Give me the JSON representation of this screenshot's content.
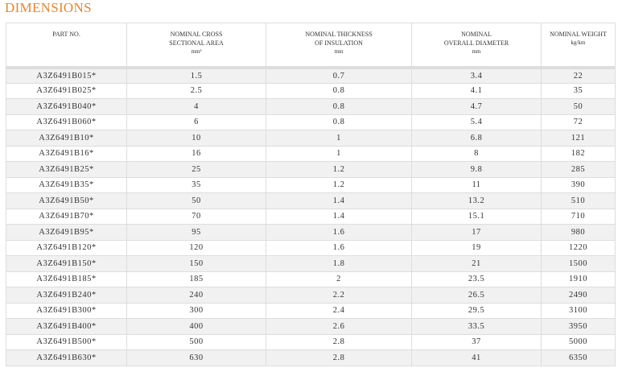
{
  "header": {
    "title": "DIMENSIONS"
  },
  "table": {
    "columns": [
      {
        "title": [
          "PART NO."
        ]
      },
      {
        "title": [
          "NOMINAL CROSS",
          "SECTIONAL AREA"
        ],
        "unit": "mm²"
      },
      {
        "title": [
          "NOMINAL THICKNESS",
          "OF INSULATION"
        ],
        "unit": "mm"
      },
      {
        "title": [
          "NOMINAL",
          "OVERALL DIAMETER"
        ],
        "unit": "mm"
      },
      {
        "title": [
          "NOMINAL WEIGHT"
        ],
        "unit": "kg/km"
      }
    ],
    "rows": [
      [
        "A3Z6491B015*",
        "1.5",
        "0.7",
        "3.4",
        "22"
      ],
      [
        "A3Z6491B025*",
        "2.5",
        "0.8",
        "4.1",
        "35"
      ],
      [
        "A3Z6491B040*",
        "4",
        "0.8",
        "4.7",
        "50"
      ],
      [
        "A3Z6491B060*",
        "6",
        "0.8",
        "5.4",
        "72"
      ],
      [
        "A3Z6491B10*",
        "10",
        "1",
        "6.8",
        "121"
      ],
      [
        "A3Z6491B16*",
        "16",
        "1",
        "8",
        "182"
      ],
      [
        "A3Z6491B25*",
        "25",
        "1.2",
        "9.8",
        "285"
      ],
      [
        "A3Z6491B35*",
        "35",
        "1.2",
        "11",
        "390"
      ],
      [
        "A3Z6491B50*",
        "50",
        "1.4",
        "13.2",
        "510"
      ],
      [
        "A3Z6491B70*",
        "70",
        "1.4",
        "15.1",
        "710"
      ],
      [
        "A3Z6491B95*",
        "95",
        "1.6",
        "17",
        "980"
      ],
      [
        "A3Z6491B120*",
        "120",
        "1.6",
        "19",
        "1220"
      ],
      [
        "A3Z6491B150*",
        "150",
        "1.8",
        "21",
        "1500"
      ],
      [
        "A3Z6491B185*",
        "185",
        "2",
        "23.5",
        "1910"
      ],
      [
        "A3Z6491B240*",
        "240",
        "2.2",
        "26.5",
        "2490"
      ],
      [
        "A3Z6491B300*",
        "300",
        "2.4",
        "29.5",
        "3100"
      ],
      [
        "A3Z6491B400*",
        "400",
        "2.6",
        "33.5",
        "3950"
      ],
      [
        "A3Z6491B500*",
        "500",
        "2.8",
        "37",
        "5000"
      ],
      [
        "A3Z6491B630*",
        "630",
        "2.8",
        "41",
        "6350"
      ]
    ]
  }
}
